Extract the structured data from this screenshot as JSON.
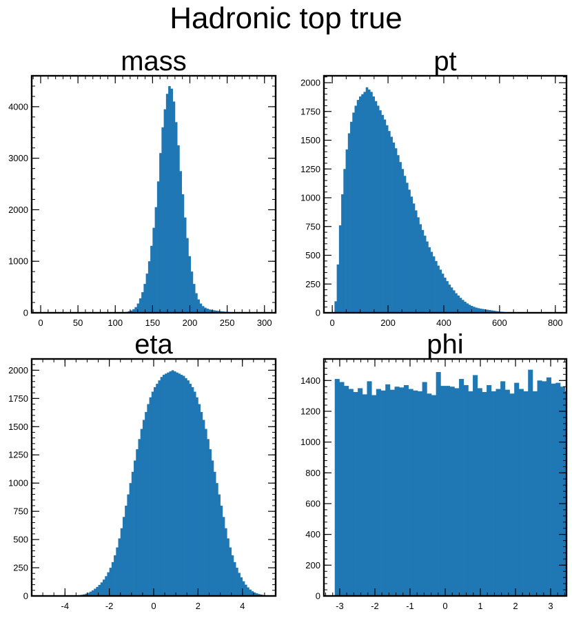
{
  "figure": {
    "title": "Hadronic top true",
    "bar_color": "#1f77b4"
  },
  "chart_data": [
    {
      "type": "bar",
      "title": "mass",
      "xlim": [
        -12,
        315
      ],
      "ylim": [
        0,
        4600
      ],
      "xticks": [
        0,
        50,
        100,
        150,
        200,
        250,
        300
      ],
      "yticks": [
        0,
        1000,
        2000,
        3000,
        4000
      ],
      "xminor_step": 10,
      "yminor_step": 200,
      "bin_width": 3,
      "bin_edges_start": 0,
      "values": [
        0,
        0,
        0,
        0,
        0,
        0,
        0,
        0,
        0,
        0,
        0,
        0,
        0,
        0,
        0,
        0,
        0,
        0,
        0,
        0,
        0,
        0,
        0,
        0,
        0,
        0,
        0,
        0,
        0,
        0,
        0,
        0,
        1,
        2,
        3,
        5,
        8,
        12,
        18,
        30,
        45,
        70,
        110,
        180,
        280,
        400,
        560,
        760,
        1000,
        1300,
        1650,
        2050,
        2550,
        3100,
        3600,
        3950,
        4250,
        4400,
        4350,
        4100,
        3700,
        3250,
        2750,
        2300,
        1850,
        1450,
        1100,
        800,
        560,
        380,
        260,
        180,
        130,
        100,
        80,
        65,
        55,
        48,
        42,
        36,
        30,
        26,
        22,
        18,
        15,
        12,
        10,
        8,
        6,
        4,
        3,
        2,
        1,
        1,
        1,
        1,
        0,
        0,
        0,
        0,
        0
      ]
    },
    {
      "type": "bar",
      "title": "pt",
      "xlim": [
        -30,
        840
      ],
      "ylim": [
        0,
        2060
      ],
      "xticks": [
        0,
        200,
        400,
        600,
        800
      ],
      "yticks": [
        0,
        250,
        500,
        750,
        1000,
        1250,
        1500,
        1750,
        2000
      ],
      "xminor_step": 50,
      "yminor_step": 50,
      "bin_width": 8,
      "bin_edges_start": 0,
      "values": [
        0,
        100,
        420,
        760,
        1030,
        1250,
        1420,
        1560,
        1660,
        1740,
        1800,
        1850,
        1880,
        1900,
        1920,
        1960,
        1940,
        1920,
        1880,
        1840,
        1800,
        1760,
        1720,
        1680,
        1630,
        1580,
        1530,
        1480,
        1430,
        1370,
        1310,
        1250,
        1190,
        1130,
        1070,
        1010,
        950,
        890,
        830,
        770,
        720,
        670,
        620,
        570,
        530,
        490,
        450,
        410,
        375,
        340,
        305,
        275,
        245,
        220,
        195,
        170,
        150,
        130,
        112,
        96,
        82,
        70,
        60,
        52,
        45,
        40,
        36,
        33,
        30,
        27,
        24,
        21,
        18,
        15,
        12,
        10,
        8,
        6,
        5,
        4,
        3,
        2,
        2,
        1,
        1,
        0,
        0,
        0,
        0,
        0,
        0,
        0,
        0,
        0,
        0,
        0,
        0,
        0,
        0,
        0
      ]
    },
    {
      "type": "bar",
      "title": "eta",
      "xlim": [
        -5.5,
        5.5
      ],
      "ylim": [
        0,
        2100
      ],
      "xticks": [
        -4,
        -2,
        0,
        2,
        4
      ],
      "yticks": [
        0,
        250,
        500,
        750,
        1000,
        1250,
        1500,
        1750,
        2000
      ],
      "xminor_step": 0.5,
      "yminor_step": 50,
      "bin_width": 0.1,
      "bin_edges_start": -5,
      "values": [
        0,
        0,
        0,
        0,
        0,
        0,
        0,
        0,
        0,
        0,
        0,
        0,
        1,
        2,
        3,
        5,
        7,
        10,
        14,
        20,
        28,
        38,
        50,
        64,
        80,
        98,
        120,
        145,
        175,
        210,
        250,
        300,
        360,
        430,
        510,
        600,
        700,
        800,
        900,
        1000,
        1100,
        1200,
        1300,
        1390,
        1480,
        1560,
        1630,
        1700,
        1760,
        1810,
        1850,
        1880,
        1910,
        1940,
        1960,
        1970,
        1980,
        1990,
        2000,
        1990,
        1980,
        1970,
        1960,
        1950,
        1930,
        1910,
        1880,
        1850,
        1810,
        1760,
        1700,
        1630,
        1560,
        1480,
        1390,
        1300,
        1200,
        1100,
        1000,
        900,
        800,
        700,
        600,
        510,
        430,
        360,
        300,
        250,
        205,
        165,
        130,
        100,
        76,
        57,
        42,
        31,
        23,
        17,
        12,
        9,
        6,
        4,
        3,
        2,
        1,
        1,
        0,
        0,
        0,
        0
      ]
    },
    {
      "type": "bar",
      "title": "phi",
      "xlim": [
        -3.45,
        3.45
      ],
      "ylim": [
        0,
        1540
      ],
      "xticks": [
        -3,
        -2,
        -1,
        0,
        1,
        2,
        3
      ],
      "yticks": [
        0,
        200,
        400,
        600,
        800,
        1000,
        1200,
        1400
      ],
      "xminor_step": 0.2,
      "yminor_step": 40,
      "bin_width": 0.1309,
      "bin_edges_start": -3.1416,
      "values": [
        1410,
        1390,
        1365,
        1345,
        1325,
        1350,
        1310,
        1395,
        1305,
        1345,
        1335,
        1375,
        1340,
        1360,
        1355,
        1370,
        1345,
        1335,
        1330,
        1390,
        1315,
        1305,
        1455,
        1365,
        1365,
        1360,
        1350,
        1410,
        1370,
        1330,
        1435,
        1350,
        1325,
        1370,
        1330,
        1345,
        1395,
        1340,
        1315,
        1385,
        1345,
        1330,
        1470,
        1330,
        1400,
        1395,
        1420,
        1380,
        1385,
        1360,
        1330,
        1335
      ]
    }
  ]
}
